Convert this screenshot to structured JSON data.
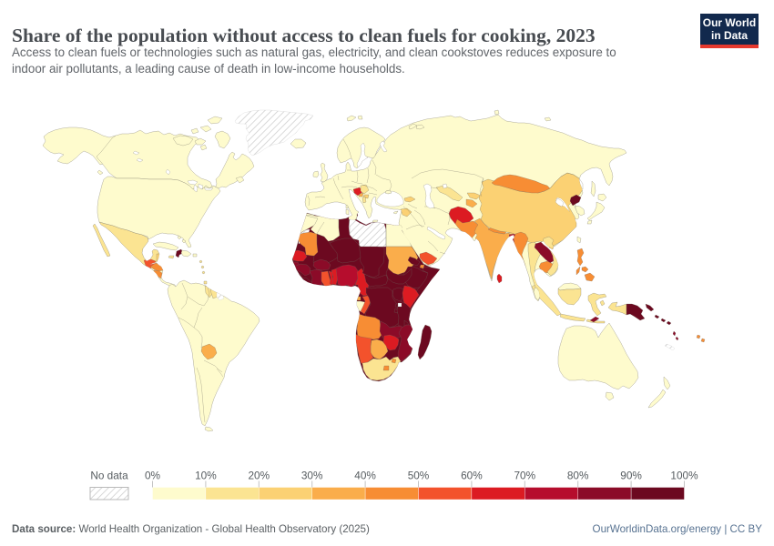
{
  "header": {
    "title": "Share of the population without access to clean fuels for cooking, 2023",
    "subtitle_line1": "Access to clean fuels or technologies such as natural gas, electricity, and clean cookstoves reduces exposure to",
    "subtitle_line2": "indoor air pollutants, a leading cause of death in low-income households.",
    "logo": {
      "line1": "Our World",
      "line2": "in Data",
      "bg": "#12294D",
      "accent": "#E6392E"
    }
  },
  "legend": {
    "no_data_label": "No data",
    "tick_labels": [
      "0%",
      "10%",
      "20%",
      "30%",
      "40%",
      "50%",
      "60%",
      "70%",
      "80%",
      "90%",
      "100%"
    ]
  },
  "footer": {
    "source_label": "Data source:",
    "source_text": " World Health Organization - Global Health Observatory (2025)",
    "right_text": "OurWorldinData.org/energy | CC BY"
  },
  "chart_data": {
    "type": "choropleth",
    "title": "Share of the population without access to clean fuels for cooking, 2023",
    "unit": "% of population",
    "palette": [
      "#FEFBCD",
      "#FBE492",
      "#FBD173",
      "#FAAD4B",
      "#F78D34",
      "#F3522C",
      "#DC1B22",
      "#B60D2D",
      "#8B0B28",
      "#6C0920"
    ],
    "bin_ranges": [
      "0-10%",
      "10-20%",
      "20-30%",
      "30-40%",
      "40-50%",
      "50-60%",
      "60-70%",
      "70-80%",
      "80-90%",
      "90-100%"
    ],
    "no_data": "hatched",
    "legend_position": "bottom",
    "countries": {
      "canada": {
        "name": "Canada",
        "bin": 1
      },
      "united-states": {
        "name": "United States",
        "bin": 1
      },
      "alaska": {
        "name": "United States (Alaska)",
        "bin": 1
      },
      "greenland": {
        "name": "Greenland",
        "bin": "nodata"
      },
      "mexico": {
        "name": "Mexico",
        "bin": 2
      },
      "baja": {
        "name": "Mexico (Baja)",
        "bin": 2
      },
      "central-america": {
        "name": "Central America",
        "bin": 1
      },
      "belize": {
        "name": "Belize",
        "bin": 3
      },
      "guatemala": {
        "name": "Guatemala",
        "bin": 6
      },
      "honduras": {
        "name": "Honduras",
        "bin": 5
      },
      "el-salvador": {
        "name": "El Salvador",
        "bin": 4
      },
      "nicaragua": {
        "name": "Nicaragua",
        "bin": 5
      },
      "cuba": {
        "name": "Cuba",
        "bin": 1
      },
      "haiti": {
        "name": "Haiti",
        "bin": 10
      },
      "dominican-republic": {
        "name": "Dominican Republic",
        "bin": 1
      },
      "jamaica": {
        "name": "Jamaica",
        "bin": 2
      },
      "puerto-rico": {
        "name": "Puerto Rico",
        "bin": 1
      },
      "bahamas": {
        "name": "Bahamas",
        "bin": 1
      },
      "lesser-antilles": {
        "name": "Lesser Antilles",
        "bin": 2
      },
      "trinidad": {
        "name": "Trinidad and Tobago",
        "bin": 2
      },
      "south-america": {
        "name": "South America",
        "bin": 1
      },
      "guyana": {
        "name": "Guyana",
        "bin": 2
      },
      "suriname": {
        "name": "Suriname",
        "bin": 2
      },
      "french-guiana": {
        "name": "French Guiana",
        "bin": "nodata"
      },
      "paraguay": {
        "name": "Paraguay",
        "bin": 4
      },
      "tierra-del-fuego": {
        "name": "Argentina (Tierra del Fuego)",
        "bin": 1
      },
      "falklands": {
        "name": "Falkland Islands",
        "bin": "nodata"
      },
      "eurasia": {
        "name": "Eurasia (Europe, Russia, Middle East: mostly 0-10%)",
        "bin": 1
      },
      "scandinavia": {
        "name": "Scandinavia",
        "bin": 1
      },
      "iceland": {
        "name": "Iceland",
        "bin": 1
      },
      "united-kingdom": {
        "name": "United Kingdom",
        "bin": 1
      },
      "ireland": {
        "name": "Ireland",
        "bin": 1
      },
      "bosnia": {
        "name": "Bosnia and Herzegovina",
        "bin": 7
      },
      "serbia": {
        "name": "Serbia",
        "bin": 2
      },
      "montenegro": {
        "name": "Montenegro",
        "bin": 4
      },
      "albania": {
        "name": "Albania",
        "bin": 2
      },
      "north-macedonia": {
        "name": "North Macedonia",
        "bin": 3
      },
      "crimea": {
        "name": "Crimea",
        "bin": 1
      },
      "sicily": {
        "name": "Italy (Sicily)",
        "bin": 1
      },
      "sardinia": {
        "name": "Italy (Sardinia)",
        "bin": 1
      },
      "corsica": {
        "name": "France (Corsica)",
        "bin": 1
      },
      "crete": {
        "name": "Greece (Crete)",
        "bin": 1
      },
      "cyprus": {
        "name": "Cyprus",
        "bin": 1
      },
      "svalbard1": {
        "name": "Svalbard",
        "bin": 1
      },
      "svalbard2": {
        "name": "Svalbard",
        "bin": 1
      },
      "novaya1": {
        "name": "Novaya Zemlya",
        "bin": 1
      },
      "novaya2": {
        "name": "Novaya Zemlya",
        "bin": 1
      },
      "severnaya": {
        "name": "Severnaya Zemlya",
        "bin": 1
      },
      "newsiberian": {
        "name": "New Siberian Is.",
        "bin": 1
      },
      "sakhalin": {
        "name": "Russia (Sakhalin)",
        "bin": 1
      },
      "georgia": {
        "name": "Georgia",
        "bin": 3
      },
      "syria": {
        "name": "Syria",
        "bin": 3
      },
      "yemen": {
        "name": "Yemen",
        "bin": 6
      },
      "uzbekistan": {
        "name": "Uzbekistan",
        "bin": 2
      },
      "kyrgyzstan": {
        "name": "Kyrgyzstan",
        "bin": 3
      },
      "tajikistan": {
        "name": "Tajikistan",
        "bin": 4
      },
      "afghanistan": {
        "name": "Afghanistan",
        "bin": 7
      },
      "pakistan": {
        "name": "Pakistan",
        "bin": 5
      },
      "india": {
        "name": "India",
        "bin": 4
      },
      "nepal": {
        "name": "Nepal",
        "bin": 5
      },
      "bhutan": {
        "name": "Bhutan",
        "bin": 3
      },
      "bangladesh": {
        "name": "Bangladesh",
        "bin": 8
      },
      "sri-lanka": {
        "name": "Sri Lanka",
        "bin": 7
      },
      "china": {
        "name": "China",
        "bin": 3
      },
      "mongolia": {
        "name": "Mongolia",
        "bin": 5
      },
      "taiwan": {
        "name": "Taiwan",
        "bin": 1
      },
      "hainan": {
        "name": "China (Hainan)",
        "bin": 3
      },
      "north-korea": {
        "name": "North Korea",
        "bin": 10
      },
      "south-korea": {
        "name": "South Korea",
        "bin": 1
      },
      "japan-hokkaido": {
        "name": "Japan",
        "bin": 1
      },
      "japan-honshu": {
        "name": "Japan",
        "bin": 1
      },
      "japan-kyushu": {
        "name": "Japan",
        "bin": 1
      },
      "myanmar": {
        "name": "Myanmar",
        "bin": 5
      },
      "thailand": {
        "name": "Thailand",
        "bin": 2
      },
      "laos": {
        "name": "Laos",
        "bin": 9
      },
      "cambodia": {
        "name": "Cambodia",
        "bin": 5
      },
      "vietnam": {
        "name": "Vietnam",
        "bin": 2
      },
      "malaysia": {
        "name": "Malaysia",
        "bin": 1
      },
      "malaysia-borneo": {
        "name": "Malaysia (Borneo)",
        "bin": 1
      },
      "sumatra": {
        "name": "Indonesia (Sumatra)",
        "bin": 2
      },
      "borneo": {
        "name": "Indonesia (Kalimantan)",
        "bin": 2
      },
      "java": {
        "name": "Indonesia (Java)",
        "bin": 2
      },
      "sulawesi": {
        "name": "Indonesia (Sulawesi)",
        "bin": 2
      },
      "lesser-sunda": {
        "name": "Indonesia (Lesser Sunda)",
        "bin": 2
      },
      "maluku": {
        "name": "Indonesia (Maluku)",
        "bin": 2
      },
      "west-papua": {
        "name": "Indonesia (Papua)",
        "bin": 2
      },
      "philippines-luzon": {
        "name": "Philippines",
        "bin": 5
      },
      "philippines-visayas": {
        "name": "Philippines",
        "bin": 5
      },
      "philippines-mindanao": {
        "name": "Philippines",
        "bin": 5
      },
      "palawan": {
        "name": "Philippines (Palawan)",
        "bin": 5
      },
      "timor-leste": {
        "name": "Timor-Leste",
        "bin": 9
      },
      "papua-new-guinea": {
        "name": "Papua New Guinea",
        "bin": 10
      },
      "new-britain": {
        "name": "PNG (New Britain)",
        "bin": 10
      },
      "solomon-islands": {
        "name": "Solomon Islands",
        "bin": 10
      },
      "vanuatu": {
        "name": "Vanuatu",
        "bin": 9
      },
      "fiji": {
        "name": "Fiji",
        "bin": 5
      },
      "new-caledonia": {
        "name": "New Caledonia",
        "bin": "nodata"
      },
      "australia": {
        "name": "Australia",
        "bin": 1
      },
      "tasmania": {
        "name": "Australia (Tasmania)",
        "bin": 1
      },
      "nz-north": {
        "name": "New Zealand",
        "bin": 1
      },
      "nz-south": {
        "name": "New Zealand",
        "bin": 1
      },
      "africa": {
        "name": "Africa (base)",
        "bin": 10
      },
      "morocco": {
        "name": "Morocco",
        "bin": 1
      },
      "western-sahara": {
        "name": "Western Sahara",
        "bin": "nodata"
      },
      "algeria": {
        "name": "Algeria",
        "bin": 1
      },
      "tunisia": {
        "name": "Tunisia",
        "bin": 1
      },
      "libya": {
        "name": "Libya",
        "bin": "nodata"
      },
      "egypt": {
        "name": "Egypt",
        "bin": 1
      },
      "mauritania": {
        "name": "Mauritania",
        "bin": 5
      },
      "mali": {
        "name": "Mali",
        "bin": 10
      },
      "niger": {
        "name": "Niger",
        "bin": 10
      },
      "chad": {
        "name": "Chad",
        "bin": 10
      },
      "sudan": {
        "name": "Sudan",
        "bin": 4
      },
      "eritrea": {
        "name": "Eritrea",
        "bin": 10
      },
      "djibouti": {
        "name": "Djibouti",
        "bin": 5
      },
      "ethiopia": {
        "name": "Ethiopia",
        "bin": 10
      },
      "somalia": {
        "name": "Somalia",
        "bin": 10
      },
      "senegal": {
        "name": "Senegal",
        "bin": 7
      },
      "guinea-bissau": {
        "name": "Guinea-Bissau",
        "bin": 9
      },
      "guinea": {
        "name": "Guinea",
        "bin": 9
      },
      "sierra-leone": {
        "name": "Sierra Leone",
        "bin": 10
      },
      "liberia": {
        "name": "Liberia",
        "bin": 10
      },
      "cote-divoire": {
        "name": "Cote d'Ivoire",
        "bin": 9
      },
      "ghana": {
        "name": "Ghana",
        "bin": 6
      },
      "togo": {
        "name": "Togo",
        "bin": 7
      },
      "benin": {
        "name": "Benin",
        "bin": 7
      },
      "burkina-faso": {
        "name": "Burkina Faso",
        "bin": 9
      },
      "nigeria": {
        "name": "Nigeria",
        "bin": 8
      },
      "cameroon": {
        "name": "Cameroon",
        "bin": 7
      },
      "central-african-republic": {
        "name": "Central African Republic",
        "bin": 10
      },
      "south-sudan": {
        "name": "South Sudan",
        "bin": 10
      },
      "uganda": {
        "name": "Uganda",
        "bin": 10
      },
      "kenya": {
        "name": "Kenya",
        "bin": 7
      },
      "gabon": {
        "name": "Gabon",
        "bin": 1
      },
      "eq-guinea": {
        "name": "Equatorial Guinea",
        "bin": 4
      },
      "congo": {
        "name": "Congo",
        "bin": 6
      },
      "drc": {
        "name": "Democratic Republic of Congo",
        "bin": 10
      },
      "rwanda": {
        "name": "Rwanda",
        "bin": 10
      },
      "burundi": {
        "name": "Burundi",
        "bin": 10
      },
      "tanzania": {
        "name": "Tanzania",
        "bin": 10
      },
      "angola": {
        "name": "Angola",
        "bin": 5
      },
      "zambia": {
        "name": "Zambia",
        "bin": 9
      },
      "malawi": {
        "name": "Malawi",
        "bin": 10
      },
      "mozambique": {
        "name": "Mozambique",
        "bin": 9
      },
      "zimbabwe": {
        "name": "Zimbabwe",
        "bin": 7
      },
      "botswana": {
        "name": "Botswana",
        "bin": 4
      },
      "namibia": {
        "name": "Namibia",
        "bin": 6
      },
      "south-africa": {
        "name": "South Africa",
        "bin": 2
      },
      "lesotho": {
        "name": "Lesotho",
        "bin": 5
      },
      "eswatini": {
        "name": "Eswatini",
        "bin": 5
      },
      "madagascar": {
        "name": "Madagascar",
        "bin": 10
      },
      "comoros": {
        "name": "Comoros",
        "bin": 8
      },
      "mauritius": {
        "name": "Mauritius",
        "bin": 1
      }
    }
  }
}
